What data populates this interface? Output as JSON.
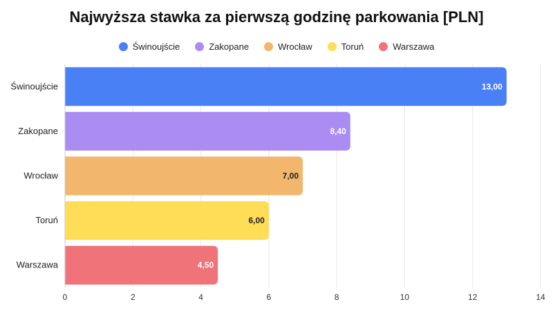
{
  "chart_data": {
    "type": "bar",
    "orientation": "horizontal",
    "title": "Najwyższa stawka za pierwszą godzinę parkowania [PLN]",
    "categories": [
      "Świnoujście",
      "Zakopane",
      "Wrocław",
      "Toruń",
      "Warszawa"
    ],
    "values": [
      13.0,
      8.4,
      7.0,
      6.0,
      4.5
    ],
    "value_labels": [
      "13,00",
      "8,40",
      "7,00",
      "6,00",
      "4,50"
    ],
    "colors": [
      "#4a80f5",
      "#ab8cf3",
      "#f2b76c",
      "#ffdd57",
      "#f0737a"
    ],
    "label_colors": [
      "#ffffff",
      "#ffffff",
      "#222222",
      "#222222",
      "#ffffff"
    ],
    "xlim": [
      0,
      14
    ],
    "xticks": [
      0,
      2,
      4,
      6,
      8,
      10,
      12,
      14
    ],
    "grid": true,
    "legend_position": "top",
    "legend": [
      "Świnoujście",
      "Zakopane",
      "Wrocław",
      "Toruń",
      "Warszawa"
    ]
  }
}
